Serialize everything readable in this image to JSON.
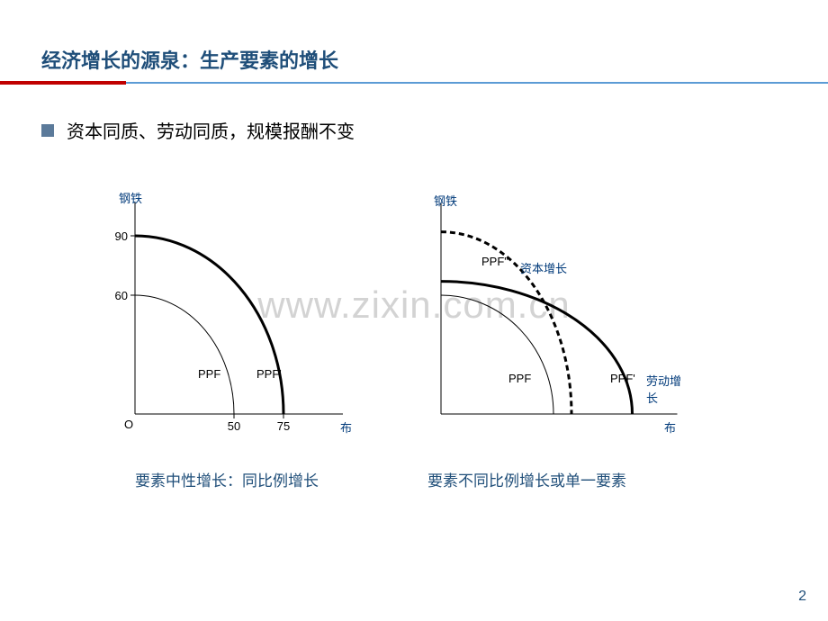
{
  "colors": {
    "title": "#1f4e79",
    "rule_red": "#c00000",
    "rule_blue": "#5b9bd5",
    "bullet": "#5b7a9a",
    "caption": "#1f4e79",
    "annot": "#003a7a",
    "pagenum": "#1f4e79",
    "axis": "#000000",
    "curve_thin": "#000000",
    "curve_thick": "#000000"
  },
  "title": "经济增长的源泉：生产要素的增长",
  "bullet": "资本同质、劳动同质，规模报酬不变",
  "watermark": "www.zixin.com.cn",
  "page_number": "2",
  "chart_left": {
    "y_axis_label": "钢铁",
    "x_axis_label": "布",
    "origin_label": "O",
    "y_ticks": [
      {
        "value": 60,
        "label": "60"
      },
      {
        "value": 90,
        "label": "90"
      }
    ],
    "x_ticks": [
      {
        "value": 50,
        "label": "50"
      },
      {
        "value": 75,
        "label": "75"
      }
    ],
    "curves": [
      {
        "label": "PPF",
        "rx": 50,
        "ry": 60,
        "stroke_width": 1
      },
      {
        "label": "PPF'",
        "rx": 75,
        "ry": 90,
        "stroke_width": 3
      }
    ],
    "caption": "要素中性增长：同比例增长",
    "axis": {
      "xmax": 100,
      "ymax": 100
    }
  },
  "chart_right": {
    "y_axis_label": "钢铁",
    "x_axis_label": "布",
    "curves": [
      {
        "label": "PPF",
        "rx": 50,
        "ry": 60,
        "stroke_width": 1,
        "dash": ""
      },
      {
        "label": "PPF'",
        "rx": 85,
        "ry": 67,
        "stroke_width": 3,
        "dash": "",
        "annot": "劳动增长"
      },
      {
        "label": "PPF\"",
        "rx": 58,
        "ry": 92,
        "stroke_width": 3,
        "dash": "6,4",
        "annot": "资本增长"
      }
    ],
    "caption": "要素不同比例增长或单一要素",
    "axis": {
      "xmax": 100,
      "ymax": 100
    }
  }
}
